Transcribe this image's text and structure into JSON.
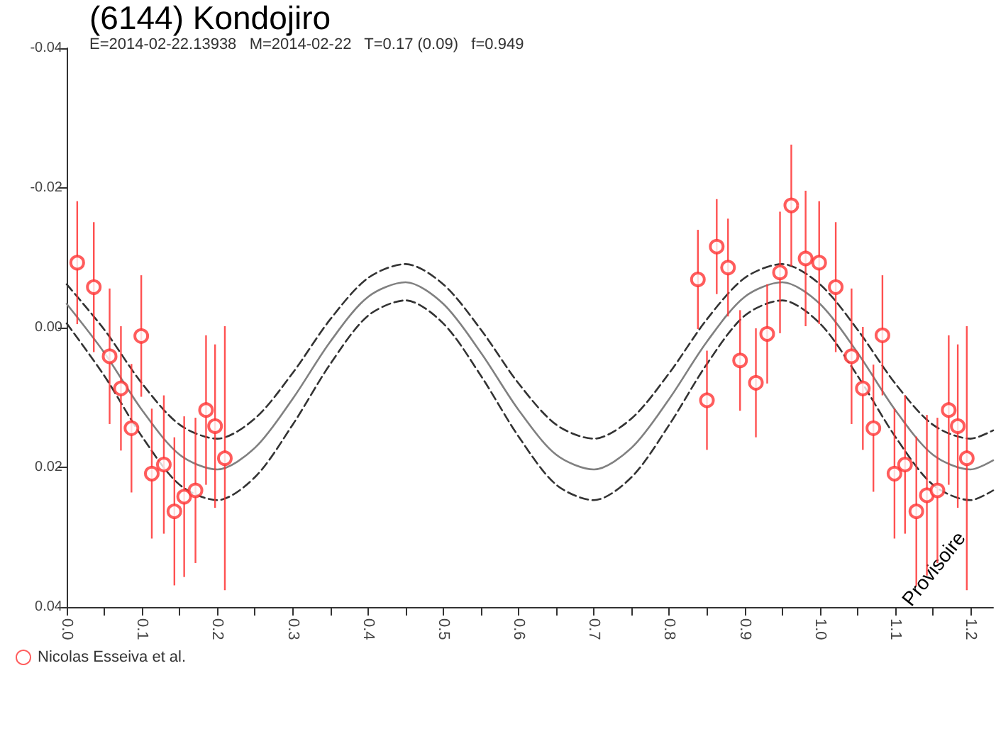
{
  "chart_data": {
    "type": "scatter",
    "title": "(6144) Kondojiro",
    "subtitle": "E=2014-02-22.13938   M=2014-02-22   T=0.17 (0.09)   f=0.949",
    "annotations": [
      "Provisoire"
    ],
    "xlim": [
      0,
      1.23
    ],
    "ylim": [
      0.04,
      -0.04
    ],
    "xticks": [
      {
        "value": 0,
        "label": "0.0"
      },
      {
        "value": 0.05,
        "label": null
      },
      0.1,
      {
        "value": 0.15,
        "label": null
      },
      0.2,
      {
        "value": 0.25,
        "label": null
      },
      0.3,
      {
        "value": 0.35,
        "label": null
      },
      0.4,
      {
        "value": 0.45,
        "label": null
      },
      0.5,
      {
        "value": 0.55,
        "label": null
      },
      0.6,
      {
        "value": 0.65,
        "label": null
      },
      0.7,
      {
        "value": 0.75,
        "label": null
      },
      0.8,
      {
        "value": 0.85,
        "label": null
      },
      0.9,
      {
        "value": 0.95,
        "label": null
      },
      {
        "value": 1,
        "label": "1.0"
      },
      {
        "value": 1.05,
        "label": null
      },
      1.1,
      {
        "value": 1.15,
        "label": null
      },
      1.2
    ],
    "yticks": [
      -0.04,
      -0.02,
      {
        "value": 0,
        "label": "0.00"
      },
      0.02,
      0.04
    ],
    "grid": false,
    "legend": "bottom left",
    "series": [
      {
        "type": "line",
        "color": "#333333",
        "line_style": "dashed",
        "marker": "none",
        "x": [
          0,
          0.05,
          0.1,
          0.15,
          0.2,
          0.25,
          0.3,
          0.35,
          0.4,
          0.45,
          0.5,
          0.55,
          0.6,
          0.65,
          0.7,
          0.75,
          0.8,
          0.85,
          0.9,
          0.95,
          1,
          1.05,
          1.1,
          1.15,
          1.2,
          1.23
        ],
        "values": [
          -0.0062,
          0.0003,
          0.008,
          0.0139,
          0.0159,
          0.013,
          0.0065,
          -0.0012,
          -0.0071,
          -0.0091,
          -0.0062,
          0.0003,
          0.008,
          0.0139,
          0.0159,
          0.013,
          0.0065,
          -0.0012,
          -0.0071,
          -0.0091,
          -0.0062,
          0.0003,
          0.008,
          0.0139,
          0.0159,
          0.0147
        ]
      },
      {
        "type": "line",
        "color": "#808080",
        "line_style": "solid",
        "marker": "none",
        "x": [
          0,
          0.05,
          0.1,
          0.15,
          0.2,
          0.25,
          0.3,
          0.35,
          0.4,
          0.45,
          0.5,
          0.55,
          0.6,
          0.65,
          0.7,
          0.75,
          0.8,
          0.85,
          0.9,
          0.95,
          1,
          1.05,
          1.1,
          1.15,
          1.2,
          1.23
        ],
        "values": [
          -0.0034,
          0.0036,
          0.0118,
          0.0182,
          0.0203,
          0.0172,
          0.0102,
          0.002,
          -0.0044,
          -0.0065,
          -0.0034,
          0.0036,
          0.0118,
          0.0182,
          0.0203,
          0.0172,
          0.0102,
          0.002,
          -0.0044,
          -0.0065,
          -0.0034,
          0.0036,
          0.0118,
          0.0182,
          0.0203,
          0.019
        ]
      },
      {
        "type": "line",
        "color": "#333333",
        "line_style": "dashed",
        "marker": "none",
        "x": [
          0,
          0.05,
          0.1,
          0.15,
          0.2,
          0.25,
          0.3,
          0.35,
          0.4,
          0.45,
          0.5,
          0.55,
          0.6,
          0.65,
          0.7,
          0.75,
          0.8,
          0.85,
          0.9,
          0.95,
          1,
          1.05,
          1.1,
          1.15,
          1.2,
          1.23
        ],
        "values": [
          -0.0006,
          0.0069,
          0.0156,
          0.0225,
          0.0247,
          0.0214,
          0.0139,
          0.0052,
          -0.0017,
          -0.0039,
          -0.0006,
          0.0069,
          0.0156,
          0.0225,
          0.0247,
          0.0214,
          0.0139,
          0.0052,
          -0.0017,
          -0.0039,
          -0.0006,
          0.0069,
          0.0156,
          0.0225,
          0.0247,
          0.0233
        ]
      },
      {
        "name": "Nicolas Esseiva et al.",
        "color": "#ff3333",
        "marker": "circle",
        "x": [
          0.014,
          0.036,
          0.057,
          0.072,
          0.086,
          0.099,
          0.113,
          0.129,
          0.143,
          0.156,
          0.171,
          0.185,
          0.197,
          0.21,
          0.838,
          0.85,
          0.863,
          0.878,
          0.894,
          0.915,
          0.93,
          0.947,
          0.962,
          0.981,
          0.999,
          1.021,
          1.042,
          1.057,
          1.071,
          1.083,
          1.099,
          1.113,
          1.128,
          1.142,
          1.156,
          1.171,
          1.183,
          1.195
        ],
        "values": [
          -0.0093,
          -0.0058,
          0.0041,
          0.0087,
          0.0144,
          0.0012,
          0.0209,
          0.0196,
          0.0263,
          0.0242,
          0.0233,
          0.0118,
          0.0141,
          0.0187,
          -0.0069,
          0.0104,
          -0.0116,
          -0.0086,
          0.0047,
          0.0079,
          0.0009,
          -0.0079,
          -0.0175,
          -0.0099,
          -0.0093,
          -0.0058,
          0.0041,
          0.0087,
          0.0144,
          0.0011,
          0.0209,
          0.0196,
          0.0263,
          0.024,
          0.0233,
          0.0118,
          0.0141,
          0.0187
        ],
        "errors": [
          0.0088,
          0.0093,
          0.0097,
          0.0089,
          0.0092,
          0.0087,
          0.0093,
          0.0099,
          0.0106,
          0.0115,
          0.0104,
          0.0107,
          0.0117,
          0.0189,
          0.0071,
          0.0071,
          0.0068,
          0.007,
          0.0072,
          0.0078,
          0.0071,
          0.0087,
          0.0087,
          0.0097,
          0.0088,
          0.0093,
          0.0097,
          0.0088,
          0.0091,
          0.0086,
          0.0093,
          0.0099,
          0.0107,
          0.0115,
          0.0104,
          0.0107,
          0.0117,
          0.0189
        ]
      }
    ]
  }
}
